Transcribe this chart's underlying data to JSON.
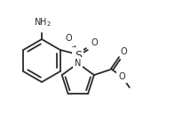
{
  "background": "#ffffff",
  "line_color": "#2a2a2a",
  "line_width": 1.3,
  "font_size": 7.0,
  "fig_width": 2.06,
  "fig_height": 1.48,
  "dpi": 100,
  "xlim": [
    0,
    206
  ],
  "ylim": [
    0,
    148
  ]
}
